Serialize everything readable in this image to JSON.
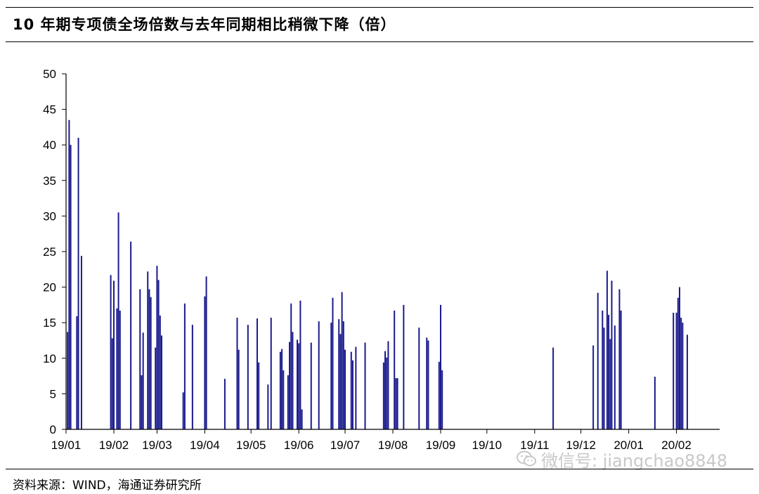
{
  "title": "10 年期专项债全场倍数与去年同期相比稍微下降（倍）",
  "source": "资料来源：WIND，海通证券研究所",
  "watermark": "微信号: jiangchao8848",
  "colors": {
    "bar": "#1a1a8c",
    "axis": "#000000",
    "text": "#000000",
    "watermark": "#c8c8c8"
  },
  "chart_data": {
    "type": "bar",
    "title": "10 年期专项债全场倍数与去年同期相比稍微下降（倍）",
    "xlabel": "",
    "ylabel": "",
    "ylim": [
      0,
      50
    ],
    "yticks": [
      0,
      5,
      10,
      15,
      20,
      25,
      30,
      35,
      40,
      45,
      50
    ],
    "xlim": [
      "2019-01-01",
      "2020-02-29"
    ],
    "xticks": [
      {
        "label": "19/01",
        "date": "2019-01-01"
      },
      {
        "label": "19/02",
        "date": "2019-02-01"
      },
      {
        "label": "19/03",
        "date": "2019-03-01"
      },
      {
        "label": "19/04",
        "date": "2019-04-01"
      },
      {
        "label": "19/05",
        "date": "2019-05-01"
      },
      {
        "label": "19/06",
        "date": "2019-06-01"
      },
      {
        "label": "19/07",
        "date": "2019-07-01"
      },
      {
        "label": "19/08",
        "date": "2019-08-01"
      },
      {
        "label": "19/09",
        "date": "2019-09-01"
      },
      {
        "label": "19/10",
        "date": "2019-10-01"
      },
      {
        "label": "19/11",
        "date": "2019-11-01"
      },
      {
        "label": "19/12",
        "date": "2019-12-01"
      },
      {
        "label": "20/01",
        "date": "2020-01-01"
      },
      {
        "label": "20/02",
        "date": "2020-02-01"
      }
    ],
    "grid": false,
    "legend": "none",
    "points": [
      {
        "x": "2019-01-02",
        "y": 13.7
      },
      {
        "x": "2019-01-03",
        "y": 43.5
      },
      {
        "x": "2019-01-04",
        "y": 40.0
      },
      {
        "x": "2019-01-08",
        "y": 15.9
      },
      {
        "x": "2019-01-09",
        "y": 41.0
      },
      {
        "x": "2019-01-11",
        "y": 24.4
      },
      {
        "x": "2019-01-30",
        "y": 21.7
      },
      {
        "x": "2019-01-31",
        "y": 12.8
      },
      {
        "x": "2019-02-01",
        "y": 20.9
      },
      {
        "x": "2019-02-03",
        "y": 17.0
      },
      {
        "x": "2019-02-04",
        "y": 30.5
      },
      {
        "x": "2019-02-05",
        "y": 16.7
      },
      {
        "x": "2019-02-12",
        "y": 26.4
      },
      {
        "x": "2019-02-18",
        "y": 19.7
      },
      {
        "x": "2019-02-19",
        "y": 7.6
      },
      {
        "x": "2019-02-20",
        "y": 13.6
      },
      {
        "x": "2019-02-23",
        "y": 22.2
      },
      {
        "x": "2019-02-24",
        "y": 19.7
      },
      {
        "x": "2019-02-25",
        "y": 18.6
      },
      {
        "x": "2019-02-28",
        "y": 11.5
      },
      {
        "x": "2019-03-01",
        "y": 23.0
      },
      {
        "x": "2019-03-02",
        "y": 21.0
      },
      {
        "x": "2019-03-03",
        "y": 16.0
      },
      {
        "x": "2019-03-04",
        "y": 13.2
      },
      {
        "x": "2019-03-18",
        "y": 5.2
      },
      {
        "x": "2019-03-19",
        "y": 17.7
      },
      {
        "x": "2019-03-24",
        "y": 14.7
      },
      {
        "x": "2019-04-01",
        "y": 18.7
      },
      {
        "x": "2019-04-02",
        "y": 21.5
      },
      {
        "x": "2019-04-14",
        "y": 7.1
      },
      {
        "x": "2019-04-22",
        "y": 15.7
      },
      {
        "x": "2019-04-23",
        "y": 11.2
      },
      {
        "x": "2019-04-29",
        "y": 14.7
      },
      {
        "x": "2019-05-05",
        "y": 15.6
      },
      {
        "x": "2019-05-06",
        "y": 9.4
      },
      {
        "x": "2019-05-12",
        "y": 6.3
      },
      {
        "x": "2019-05-14",
        "y": 15.7
      },
      {
        "x": "2019-05-20",
        "y": 10.9
      },
      {
        "x": "2019-05-21",
        "y": 11.3
      },
      {
        "x": "2019-05-22",
        "y": 8.3
      },
      {
        "x": "2019-05-25",
        "y": 7.6
      },
      {
        "x": "2019-05-26",
        "y": 12.3
      },
      {
        "x": "2019-05-27",
        "y": 17.7
      },
      {
        "x": "2019-05-28",
        "y": 13.7
      },
      {
        "x": "2019-05-31",
        "y": 12.6
      },
      {
        "x": "2019-06-01",
        "y": 12.1
      },
      {
        "x": "2019-06-02",
        "y": 18.1
      },
      {
        "x": "2019-06-03",
        "y": 2.8
      },
      {
        "x": "2019-06-09",
        "y": 12.2
      },
      {
        "x": "2019-06-14",
        "y": 15.2
      },
      {
        "x": "2019-06-22",
        "y": 15.0
      },
      {
        "x": "2019-06-23",
        "y": 18.5
      },
      {
        "x": "2019-06-27",
        "y": 15.5
      },
      {
        "x": "2019-06-28",
        "y": 13.4
      },
      {
        "x": "2019-06-29",
        "y": 19.3
      },
      {
        "x": "2019-06-30",
        "y": 15.2
      },
      {
        "x": "2019-07-01",
        "y": 11.2
      },
      {
        "x": "2019-07-05",
        "y": 10.9
      },
      {
        "x": "2019-07-06",
        "y": 9.7
      },
      {
        "x": "2019-07-08",
        "y": 11.6
      },
      {
        "x": "2019-07-14",
        "y": 12.2
      },
      {
        "x": "2019-07-26",
        "y": 9.4
      },
      {
        "x": "2019-07-27",
        "y": 11.0
      },
      {
        "x": "2019-07-28",
        "y": 10.1
      },
      {
        "x": "2019-07-29",
        "y": 12.4
      },
      {
        "x": "2019-08-02",
        "y": 16.7
      },
      {
        "x": "2019-08-03",
        "y": 7.2
      },
      {
        "x": "2019-08-04",
        "y": 7.2
      },
      {
        "x": "2019-08-08",
        "y": 17.5
      },
      {
        "x": "2019-08-18",
        "y": 14.3
      },
      {
        "x": "2019-08-23",
        "y": 12.9
      },
      {
        "x": "2019-08-24",
        "y": 12.5
      },
      {
        "x": "2019-08-31",
        "y": 9.5
      },
      {
        "x": "2019-09-01",
        "y": 17.5
      },
      {
        "x": "2019-09-02",
        "y": 8.3
      },
      {
        "x": "2019-11-13",
        "y": 11.5
      },
      {
        "x": "2019-12-09",
        "y": 11.8
      },
      {
        "x": "2019-12-12",
        "y": 19.2
      },
      {
        "x": "2019-12-15",
        "y": 16.7
      },
      {
        "x": "2019-12-16",
        "y": 14.3
      },
      {
        "x": "2019-12-18",
        "y": 22.3
      },
      {
        "x": "2019-12-19",
        "y": 16.1
      },
      {
        "x": "2019-12-20",
        "y": 12.7
      },
      {
        "x": "2019-12-21",
        "y": 20.9
      },
      {
        "x": "2019-12-23",
        "y": 14.6
      },
      {
        "x": "2019-12-26",
        "y": 19.7
      },
      {
        "x": "2019-12-27",
        "y": 16.7
      },
      {
        "x": "2020-01-18",
        "y": 7.4
      },
      {
        "x": "2020-01-30",
        "y": 16.4
      },
      {
        "x": "2020-02-01",
        "y": 16.4
      },
      {
        "x": "2020-02-02",
        "y": 18.5
      },
      {
        "x": "2020-02-03",
        "y": 20.0
      },
      {
        "x": "2020-02-04",
        "y": 15.7
      },
      {
        "x": "2020-02-05",
        "y": 15.0
      },
      {
        "x": "2020-02-08",
        "y": 13.3
      }
    ]
  }
}
